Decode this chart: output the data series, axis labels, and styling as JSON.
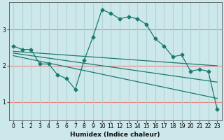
{
  "title": "",
  "xlabel": "Humidex (Indice chaleur)",
  "ylabel": "",
  "background_color": "#cce8ea",
  "plot_bg_color": "#cce8ea",
  "grid_color_h": "#e88080",
  "grid_color_v": "#b0d4d6",
  "line_color": "#1a7a6e",
  "xlim": [
    -0.5,
    23.5
  ],
  "ylim": [
    0.5,
    3.75
  ],
  "yticks": [
    1,
    2,
    3
  ],
  "xticks": [
    0,
    1,
    2,
    3,
    4,
    5,
    6,
    7,
    8,
    9,
    10,
    11,
    12,
    13,
    14,
    15,
    16,
    17,
    18,
    19,
    20,
    21,
    22,
    23
  ],
  "series": [
    {
      "x": [
        0,
        1,
        2,
        3,
        4,
        5,
        6,
        7,
        8,
        9,
        10,
        11,
        12,
        13,
        14,
        15,
        16,
        17,
        18,
        19,
        20,
        21,
        22,
        23
      ],
      "y": [
        2.55,
        2.45,
        2.45,
        2.05,
        2.05,
        1.75,
        1.65,
        1.35,
        2.15,
        2.8,
        3.55,
        3.45,
        3.3,
        3.35,
        3.3,
        3.15,
        2.75,
        2.55,
        2.25,
        2.3,
        1.85,
        1.9,
        1.85,
        0.8
      ],
      "marker": "D",
      "marker_size": 2.5
    },
    {
      "x": [
        0,
        23
      ],
      "y": [
        2.4,
        2.0
      ],
      "marker": null
    },
    {
      "x": [
        0,
        23
      ],
      "y": [
        2.35,
        1.55
      ],
      "marker": null
    },
    {
      "x": [
        0,
        23
      ],
      "y": [
        2.28,
        1.1
      ],
      "marker": null
    }
  ]
}
